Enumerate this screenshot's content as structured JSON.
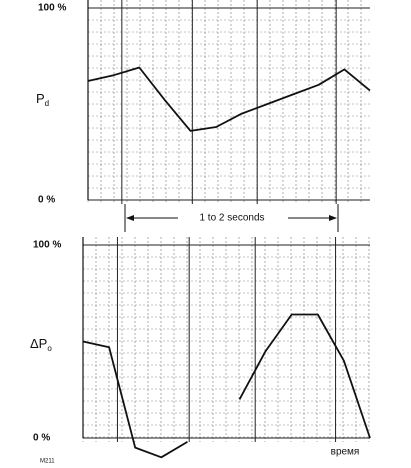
{
  "chart_data": [
    {
      "type": "line",
      "ylabel": {
        "main": "P",
        "sub": "d"
      },
      "categories": [
        null,
        null,
        null,
        null,
        null,
        null,
        null,
        null,
        null,
        null,
        null,
        null
      ],
      "series": [
        {
          "color": "#111111",
          "values": [
            62,
            65,
            69,
            52,
            36,
            38,
            45,
            50,
            55,
            60,
            68,
            57
          ]
        }
      ],
      "ylim": [
        0,
        100
      ],
      "yticks": [
        {
          "value": 100,
          "label": "100 %"
        },
        {
          "value": 0,
          "label": "0 %"
        }
      ],
      "annotation": "1 to 2 seconds",
      "grid": true
    },
    {
      "type": "line",
      "ylabel": {
        "main": "ΔP",
        "sub": "o"
      },
      "categories": [
        null,
        null,
        null,
        null,
        null,
        null,
        null,
        null,
        null,
        null,
        null,
        null
      ],
      "series": [
        {
          "color": "#111111",
          "values": [
            50,
            47,
            -5,
            -10,
            -2,
            null,
            20,
            45,
            64,
            64,
            40,
            0
          ]
        }
      ],
      "ylim": [
        0,
        100
      ],
      "yticks": [
        {
          "value": 100,
          "label": "100 %"
        },
        {
          "value": 0,
          "label": "0 %"
        }
      ],
      "xlabel": "время",
      "footnote": "M211",
      "grid": true
    }
  ]
}
